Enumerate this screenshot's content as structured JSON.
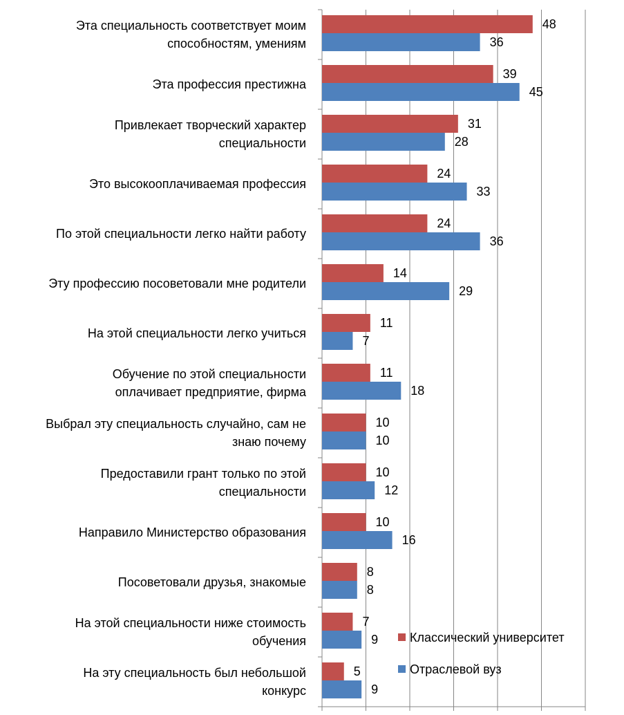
{
  "colors": {
    "series_1": "#c0504d",
    "series_2": "#4f81bd",
    "grid": "#868686",
    "axis": "#868686"
  },
  "chart_data": {
    "type": "bar",
    "orientation": "horizontal",
    "categories": [
      "Эта специальность соответствует моим\nспособностям, умениям",
      "Эта профессия престижна",
      "Привлекает творческий характер\nспециальности",
      "Это высокооплачиваемая профессия",
      "По этой специальности легко найти работу",
      "Эту профессию посоветовали мне родители",
      "На этой специальности легко учиться",
      "Обучение по этой специальности\nоплачивает предприятие, фирма",
      "Выбрал эту специальность случайно, сам не\nзнаю почему",
      "Предоставили грант только по этой\nспециальности",
      "Направило Министерство образования",
      "Посоветовали друзья, знакомые",
      "На этой специальности ниже стоимость\nобучения",
      "На эту специальность был небольшой\nконкурс"
    ],
    "series": [
      {
        "name": "Классический университет",
        "values": [
          48,
          39,
          31,
          24,
          24,
          14,
          11,
          11,
          10,
          10,
          10,
          8,
          7,
          5
        ]
      },
      {
        "name": "Отраслевой вуз",
        "values": [
          36,
          45,
          28,
          33,
          36,
          29,
          7,
          18,
          10,
          12,
          16,
          8,
          9,
          9
        ]
      }
    ],
    "xlim": [
      0,
      60
    ],
    "grid": true,
    "legend_position": "bottom-right"
  }
}
